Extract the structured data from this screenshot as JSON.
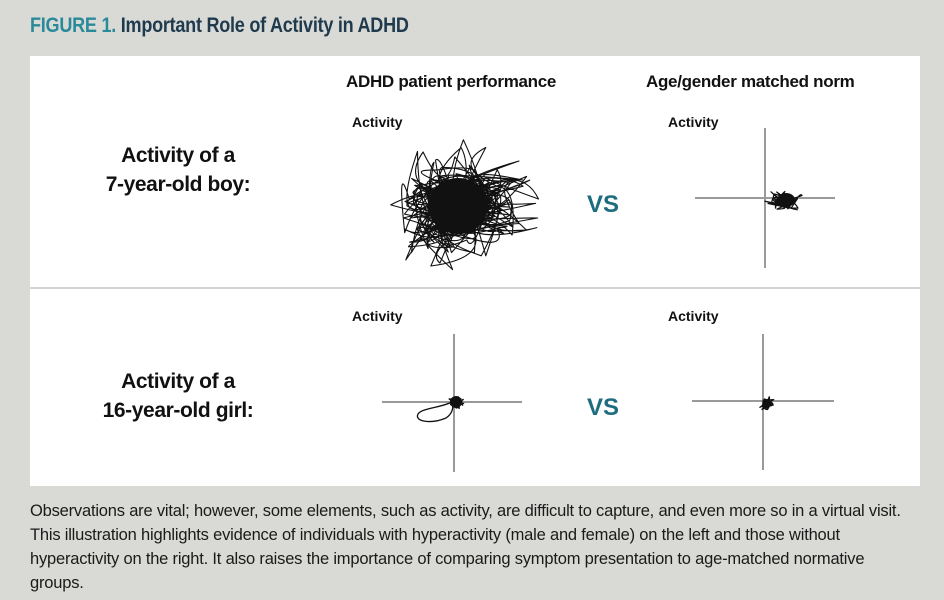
{
  "figure": {
    "label": "FIGURE 1.",
    "title": "Important Role of Activity in ADHD"
  },
  "columns": {
    "left": "ADHD patient performance",
    "right": "Age/gender matched norm"
  },
  "axis_label": "Activity",
  "comparison_word": "VS",
  "rows": [
    {
      "line1": "Activity of a",
      "line2": "7-year-old boy:"
    },
    {
      "line1": "Activity of a",
      "line2": "16-year-old girl:"
    }
  ],
  "caption": "Observations are vital; however, some elements, such as activity, are difficult to capture, and even more so in a virtual visit. This illustration highlights evidence of individuals with hyperactivity (male and female) on the left and those without hyperactivity on the right. It also raises the importance of comparing symptom presentation to age-matched normative groups.",
  "colors": {
    "title_dark": "#1f3a4d",
    "title_accent": "#2a8a9a",
    "vs": "#1d6c80",
    "axis": "#9a9a9a",
    "trace": "#111111"
  }
}
